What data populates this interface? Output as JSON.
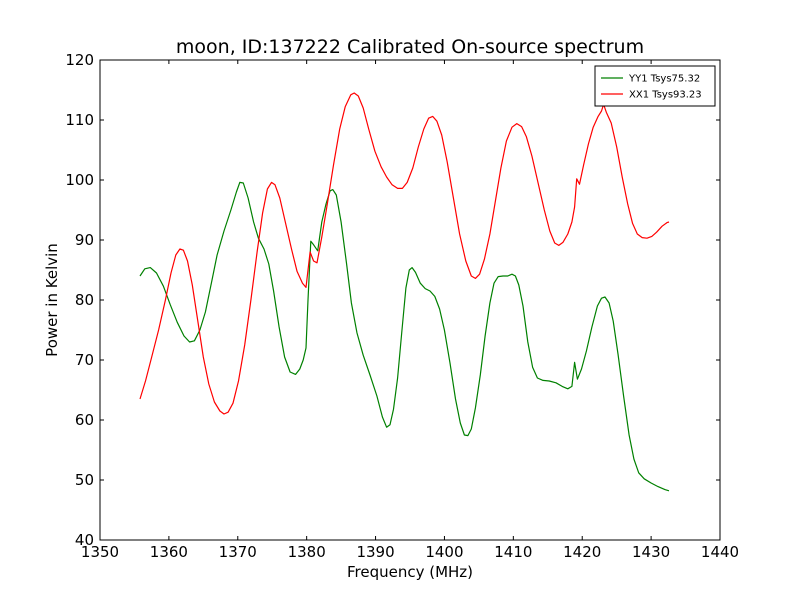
{
  "chart_data": {
    "type": "line",
    "title": "moon, ID:137222 Calibrated On-source spectrum",
    "xlabel": "Frequency (MHz)",
    "ylabel": "Power in Kelvin",
    "xlim": [
      1350,
      1440
    ],
    "ylim": [
      40,
      120
    ],
    "xticks": [
      1350,
      1360,
      1370,
      1380,
      1390,
      1400,
      1410,
      1420,
      1430,
      1440
    ],
    "yticks": [
      40,
      50,
      60,
      70,
      80,
      90,
      100,
      110,
      120
    ],
    "grid": false,
    "legend_position": "top-right",
    "series": [
      {
        "name": "YY1 Tsys75.32",
        "color": "#008000",
        "points": [
          [
            1355.8,
            84.0
          ],
          [
            1356.5,
            85.2
          ],
          [
            1357.3,
            85.4
          ],
          [
            1358.2,
            84.5
          ],
          [
            1359.2,
            82.3
          ],
          [
            1360.2,
            79.2
          ],
          [
            1361.2,
            76.3
          ],
          [
            1362.2,
            74.0
          ],
          [
            1363.0,
            73.0
          ],
          [
            1363.7,
            73.2
          ],
          [
            1364.5,
            75.0
          ],
          [
            1365.3,
            78.0
          ],
          [
            1366.2,
            83.0
          ],
          [
            1367.0,
            87.5
          ],
          [
            1368.0,
            91.5
          ],
          [
            1369.0,
            95.0
          ],
          [
            1369.8,
            98.0
          ],
          [
            1370.3,
            99.6
          ],
          [
            1370.8,
            99.5
          ],
          [
            1371.5,
            97.0
          ],
          [
            1372.3,
            93.0
          ],
          [
            1373.0,
            90.3
          ],
          [
            1373.8,
            88.5
          ],
          [
            1374.5,
            86.0
          ],
          [
            1375.2,
            81.5
          ],
          [
            1376.0,
            75.5
          ],
          [
            1376.8,
            70.5
          ],
          [
            1377.6,
            68.0
          ],
          [
            1378.4,
            67.6
          ],
          [
            1379.0,
            68.5
          ],
          [
            1379.5,
            70.0
          ],
          [
            1379.9,
            72.0
          ],
          [
            1380.2,
            80.0
          ],
          [
            1380.6,
            89.8
          ],
          [
            1381.0,
            89.2
          ],
          [
            1381.6,
            88.2
          ],
          [
            1382.2,
            93.0
          ],
          [
            1382.8,
            96.0
          ],
          [
            1383.4,
            98.2
          ],
          [
            1383.8,
            98.4
          ],
          [
            1384.3,
            97.5
          ],
          [
            1385.0,
            93.0
          ],
          [
            1385.8,
            86.0
          ],
          [
            1386.5,
            79.5
          ],
          [
            1387.3,
            74.5
          ],
          [
            1388.2,
            70.8
          ],
          [
            1389.2,
            67.5
          ],
          [
            1390.2,
            64.0
          ],
          [
            1391.0,
            60.5
          ],
          [
            1391.6,
            58.8
          ],
          [
            1392.1,
            59.2
          ],
          [
            1392.6,
            61.8
          ],
          [
            1393.2,
            67.0
          ],
          [
            1393.8,
            74.5
          ],
          [
            1394.4,
            82.0
          ],
          [
            1394.9,
            85.0
          ],
          [
            1395.3,
            85.4
          ],
          [
            1395.8,
            84.6
          ],
          [
            1396.5,
            82.8
          ],
          [
            1397.2,
            81.9
          ],
          [
            1397.9,
            81.5
          ],
          [
            1398.6,
            80.6
          ],
          [
            1399.3,
            78.5
          ],
          [
            1400.0,
            75.0
          ],
          [
            1400.8,
            69.5
          ],
          [
            1401.6,
            63.5
          ],
          [
            1402.3,
            59.5
          ],
          [
            1402.9,
            57.5
          ],
          [
            1403.4,
            57.4
          ],
          [
            1403.9,
            58.5
          ],
          [
            1404.5,
            62.0
          ],
          [
            1405.2,
            67.5
          ],
          [
            1405.9,
            74.0
          ],
          [
            1406.6,
            79.5
          ],
          [
            1407.2,
            82.8
          ],
          [
            1407.8,
            83.9
          ],
          [
            1408.5,
            84.0
          ],
          [
            1409.2,
            84.0
          ],
          [
            1409.8,
            84.3
          ],
          [
            1410.3,
            84.0
          ],
          [
            1410.8,
            82.5
          ],
          [
            1411.4,
            79.0
          ],
          [
            1412.1,
            73.0
          ],
          [
            1412.8,
            68.8
          ],
          [
            1413.5,
            67.0
          ],
          [
            1414.3,
            66.6
          ],
          [
            1415.2,
            66.5
          ],
          [
            1416.2,
            66.2
          ],
          [
            1417.1,
            65.6
          ],
          [
            1417.9,
            65.2
          ],
          [
            1418.5,
            65.6
          ],
          [
            1418.9,
            69.6
          ],
          [
            1419.3,
            66.8
          ],
          [
            1419.9,
            68.5
          ],
          [
            1420.6,
            71.5
          ],
          [
            1421.4,
            75.5
          ],
          [
            1422.2,
            79.0
          ],
          [
            1422.8,
            80.3
          ],
          [
            1423.3,
            80.5
          ],
          [
            1423.9,
            79.5
          ],
          [
            1424.5,
            76.5
          ],
          [
            1425.2,
            71.0
          ],
          [
            1426.0,
            64.0
          ],
          [
            1426.8,
            57.5
          ],
          [
            1427.5,
            53.5
          ],
          [
            1428.2,
            51.2
          ],
          [
            1429.0,
            50.2
          ],
          [
            1430.0,
            49.5
          ],
          [
            1431.0,
            48.9
          ],
          [
            1432.0,
            48.4
          ],
          [
            1432.6,
            48.2
          ]
        ]
      },
      {
        "name": "XX1 Tsys93.23",
        "color": "#ff0000",
        "points": [
          [
            1355.8,
            63.5
          ],
          [
            1356.6,
            66.5
          ],
          [
            1357.5,
            70.5
          ],
          [
            1358.5,
            75.0
          ],
          [
            1359.5,
            80.0
          ],
          [
            1360.3,
            84.5
          ],
          [
            1361.0,
            87.5
          ],
          [
            1361.6,
            88.5
          ],
          [
            1362.1,
            88.3
          ],
          [
            1362.7,
            86.5
          ],
          [
            1363.4,
            82.5
          ],
          [
            1364.2,
            76.5
          ],
          [
            1365.0,
            70.5
          ],
          [
            1365.8,
            66.0
          ],
          [
            1366.6,
            63.0
          ],
          [
            1367.4,
            61.5
          ],
          [
            1368.0,
            61.0
          ],
          [
            1368.6,
            61.3
          ],
          [
            1369.3,
            62.8
          ],
          [
            1370.1,
            66.5
          ],
          [
            1371.0,
            72.5
          ],
          [
            1371.9,
            80.0
          ],
          [
            1372.8,
            88.0
          ],
          [
            1373.6,
            94.5
          ],
          [
            1374.3,
            98.5
          ],
          [
            1374.9,
            99.6
          ],
          [
            1375.4,
            99.2
          ],
          [
            1376.1,
            97.0
          ],
          [
            1376.9,
            93.0
          ],
          [
            1377.8,
            88.5
          ],
          [
            1378.6,
            84.8
          ],
          [
            1379.4,
            82.8
          ],
          [
            1379.9,
            82.1
          ],
          [
            1380.5,
            88.0
          ],
          [
            1381.0,
            86.5
          ],
          [
            1381.5,
            86.2
          ],
          [
            1382.2,
            90.5
          ],
          [
            1383.0,
            96.0
          ],
          [
            1383.9,
            102.5
          ],
          [
            1384.8,
            108.5
          ],
          [
            1385.6,
            112.2
          ],
          [
            1386.4,
            114.2
          ],
          [
            1386.9,
            114.5
          ],
          [
            1387.5,
            114.0
          ],
          [
            1388.2,
            112.0
          ],
          [
            1389.0,
            108.5
          ],
          [
            1389.9,
            104.8
          ],
          [
            1390.8,
            102.2
          ],
          [
            1391.6,
            100.5
          ],
          [
            1392.4,
            99.2
          ],
          [
            1393.2,
            98.6
          ],
          [
            1393.9,
            98.6
          ],
          [
            1394.6,
            99.6
          ],
          [
            1395.4,
            102.0
          ],
          [
            1396.2,
            105.5
          ],
          [
            1397.0,
            108.5
          ],
          [
            1397.7,
            110.3
          ],
          [
            1398.3,
            110.6
          ],
          [
            1398.9,
            109.8
          ],
          [
            1399.6,
            107.5
          ],
          [
            1400.4,
            103.0
          ],
          [
            1401.3,
            97.0
          ],
          [
            1402.2,
            91.0
          ],
          [
            1403.1,
            86.5
          ],
          [
            1403.9,
            84.0
          ],
          [
            1404.5,
            83.6
          ],
          [
            1405.1,
            84.3
          ],
          [
            1405.8,
            86.8
          ],
          [
            1406.6,
            91.0
          ],
          [
            1407.4,
            96.5
          ],
          [
            1408.2,
            102.0
          ],
          [
            1409.0,
            106.5
          ],
          [
            1409.8,
            108.8
          ],
          [
            1410.5,
            109.4
          ],
          [
            1411.2,
            108.9
          ],
          [
            1411.9,
            107.2
          ],
          [
            1412.7,
            104.0
          ],
          [
            1413.6,
            99.5
          ],
          [
            1414.5,
            95.0
          ],
          [
            1415.3,
            91.5
          ],
          [
            1416.0,
            89.5
          ],
          [
            1416.6,
            89.1
          ],
          [
            1417.2,
            89.6
          ],
          [
            1417.9,
            91.0
          ],
          [
            1418.5,
            93.0
          ],
          [
            1418.9,
            95.5
          ],
          [
            1419.2,
            100.2
          ],
          [
            1419.6,
            99.3
          ],
          [
            1420.2,
            102.5
          ],
          [
            1420.9,
            106.0
          ],
          [
            1421.6,
            108.8
          ],
          [
            1422.3,
            110.6
          ],
          [
            1422.8,
            111.5
          ],
          [
            1423.1,
            112.6
          ],
          [
            1423.5,
            111.3
          ],
          [
            1424.2,
            109.5
          ],
          [
            1425.0,
            105.5
          ],
          [
            1425.8,
            100.5
          ],
          [
            1426.6,
            96.0
          ],
          [
            1427.3,
            92.8
          ],
          [
            1428.0,
            91.0
          ],
          [
            1428.7,
            90.4
          ],
          [
            1429.4,
            90.3
          ],
          [
            1430.1,
            90.6
          ],
          [
            1430.8,
            91.3
          ],
          [
            1431.6,
            92.3
          ],
          [
            1432.3,
            92.9
          ],
          [
            1432.6,
            93.0
          ]
        ]
      }
    ]
  }
}
